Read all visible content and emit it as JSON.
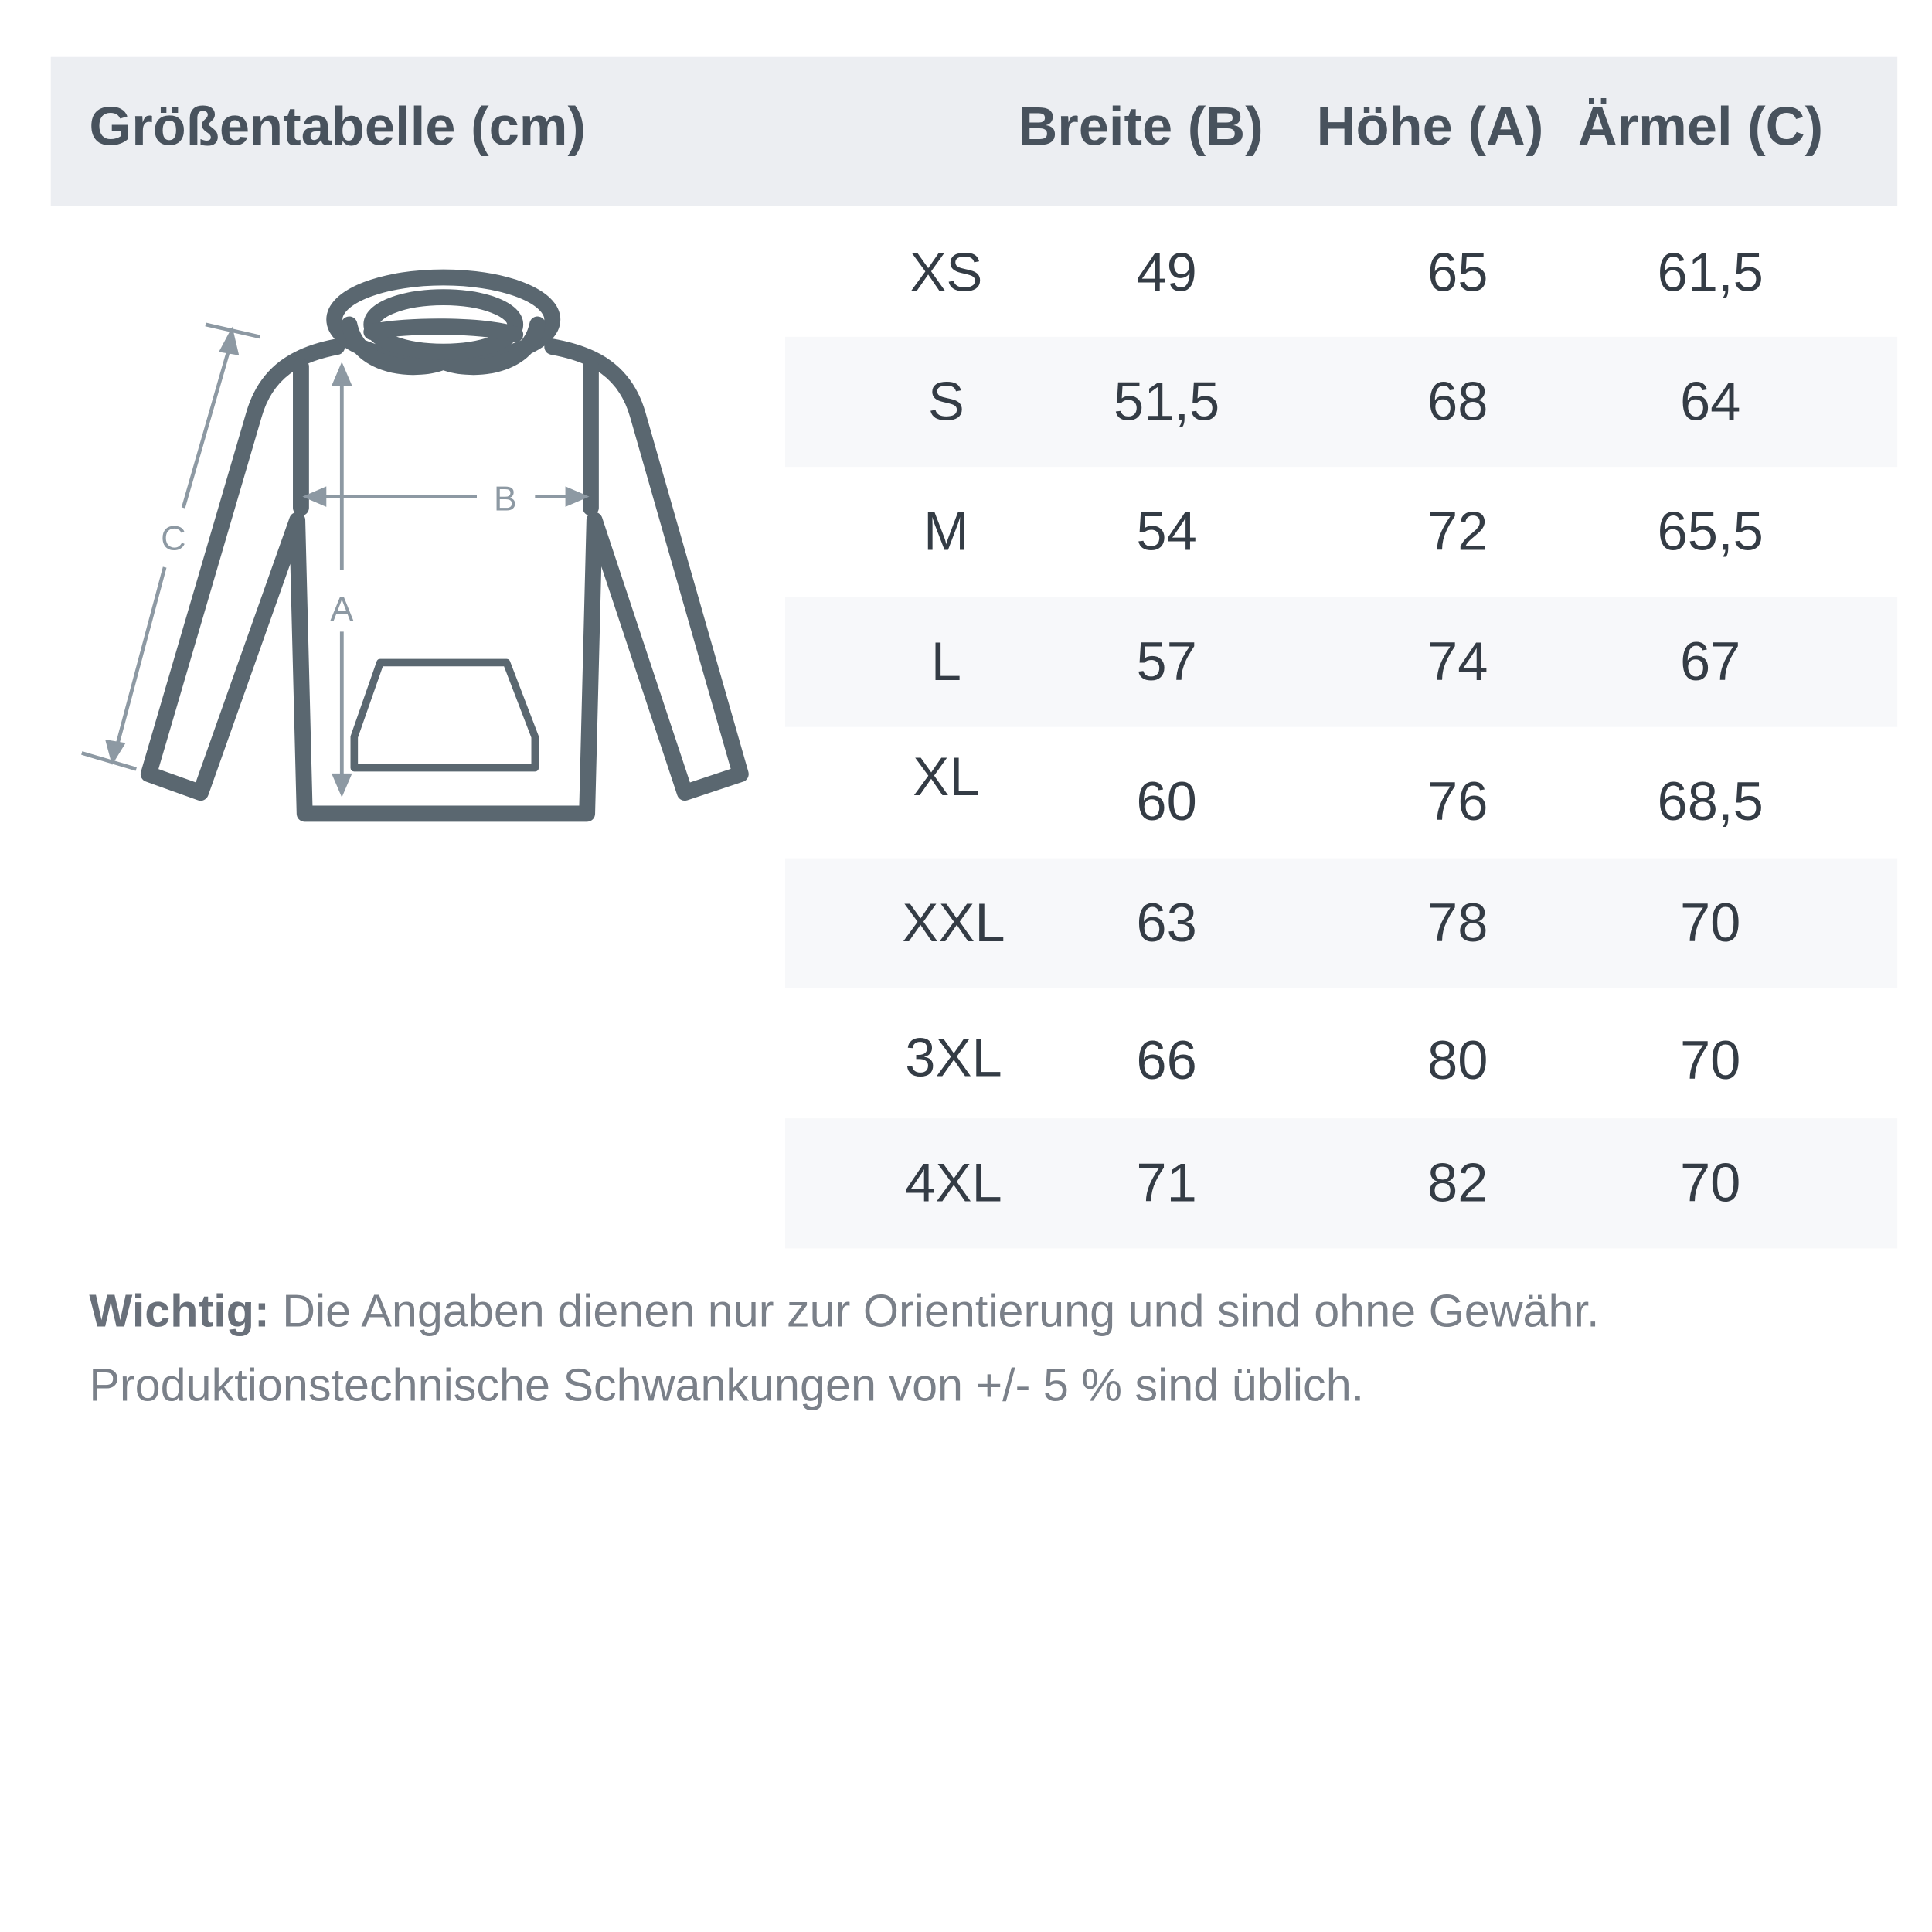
{
  "header": {
    "title": "Größentabelle (cm)",
    "columns": [
      "Breite (B)",
      "Höhe (A)",
      "Ärmel (C)"
    ]
  },
  "diagram": {
    "labels": {
      "width": "B",
      "height": "A",
      "sleeve": "C"
    },
    "colors": {
      "outline": "#5a6770",
      "measure": "#8d99a3"
    }
  },
  "rows": [
    {
      "size": "XS",
      "breite": "49",
      "hoehe": "65",
      "aermel": "61,5"
    },
    {
      "size": "S",
      "breite": "51,5",
      "hoehe": "68",
      "aermel": "64"
    },
    {
      "size": "M",
      "breite": "54",
      "hoehe": "72",
      "aermel": "65,5"
    },
    {
      "size": "L",
      "breite": "57",
      "hoehe": "74",
      "aermel": "67"
    },
    {
      "size": "XL",
      "breite": "60",
      "hoehe": "76",
      "aermel": "68,5"
    },
    {
      "size": "XXL",
      "breite": "63",
      "hoehe": "78",
      "aermel": "70"
    },
    {
      "size": "3XL",
      "breite": "66",
      "hoehe": "80",
      "aermel": "70"
    },
    {
      "size": "4XL",
      "breite": "71",
      "hoehe": "82",
      "aermel": "70"
    }
  ],
  "note": {
    "label": "Wichtig:",
    "line1": " Die Angaben dienen nur zur Orientierung und sind ohne Gewähr.",
    "line2": "Produktionstechnische Schwankungen von +/- 5 % sind üblich."
  }
}
